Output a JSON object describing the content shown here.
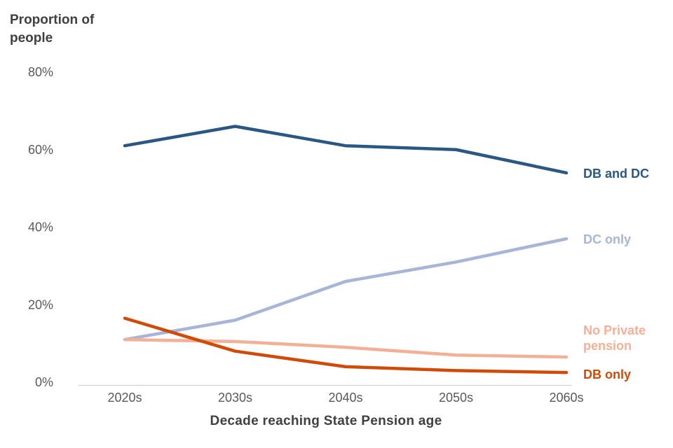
{
  "chart_data": {
    "type": "line",
    "title": "Proportion of people",
    "title_lines": [
      "Proportion of",
      "people"
    ],
    "xlabel": "Decade reaching State Pension age",
    "ylabel": "Proportion of people",
    "categories": [
      "2020s",
      "2030s",
      "2040s",
      "2050s",
      "2060s"
    ],
    "ylim": [
      0,
      80
    ],
    "y_ticks": [
      80,
      60,
      40,
      20,
      0
    ],
    "y_tick_labels": [
      "80%",
      "60%",
      "40%",
      "20%",
      "0%"
    ],
    "grid": false,
    "legend_position": "line-end-labels",
    "series": [
      {
        "name": "DB and DC",
        "label_lines": [
          "DB and DC"
        ],
        "color": "#2a5783",
        "values": [
          61,
          66,
          61,
          60,
          54
        ]
      },
      {
        "name": "DC only",
        "label_lines": [
          "DC only"
        ],
        "color": "#a8b5d6",
        "values": [
          11,
          16,
          26,
          31,
          37
        ]
      },
      {
        "name": "No Private pension",
        "label_lines": [
          "No Private",
          "pension"
        ],
        "color": "#f4b096",
        "values": [
          11,
          10.5,
          9,
          7,
          6.5
        ]
      },
      {
        "name": "DB only",
        "label_lines": [
          "DB only"
        ],
        "color": "#d04a08",
        "values": [
          16.5,
          8,
          4,
          3,
          2.5
        ]
      }
    ]
  },
  "colors": {
    "axis_line": "#d9d9d9",
    "tick_text": "#595959",
    "title_text": "#404040"
  }
}
